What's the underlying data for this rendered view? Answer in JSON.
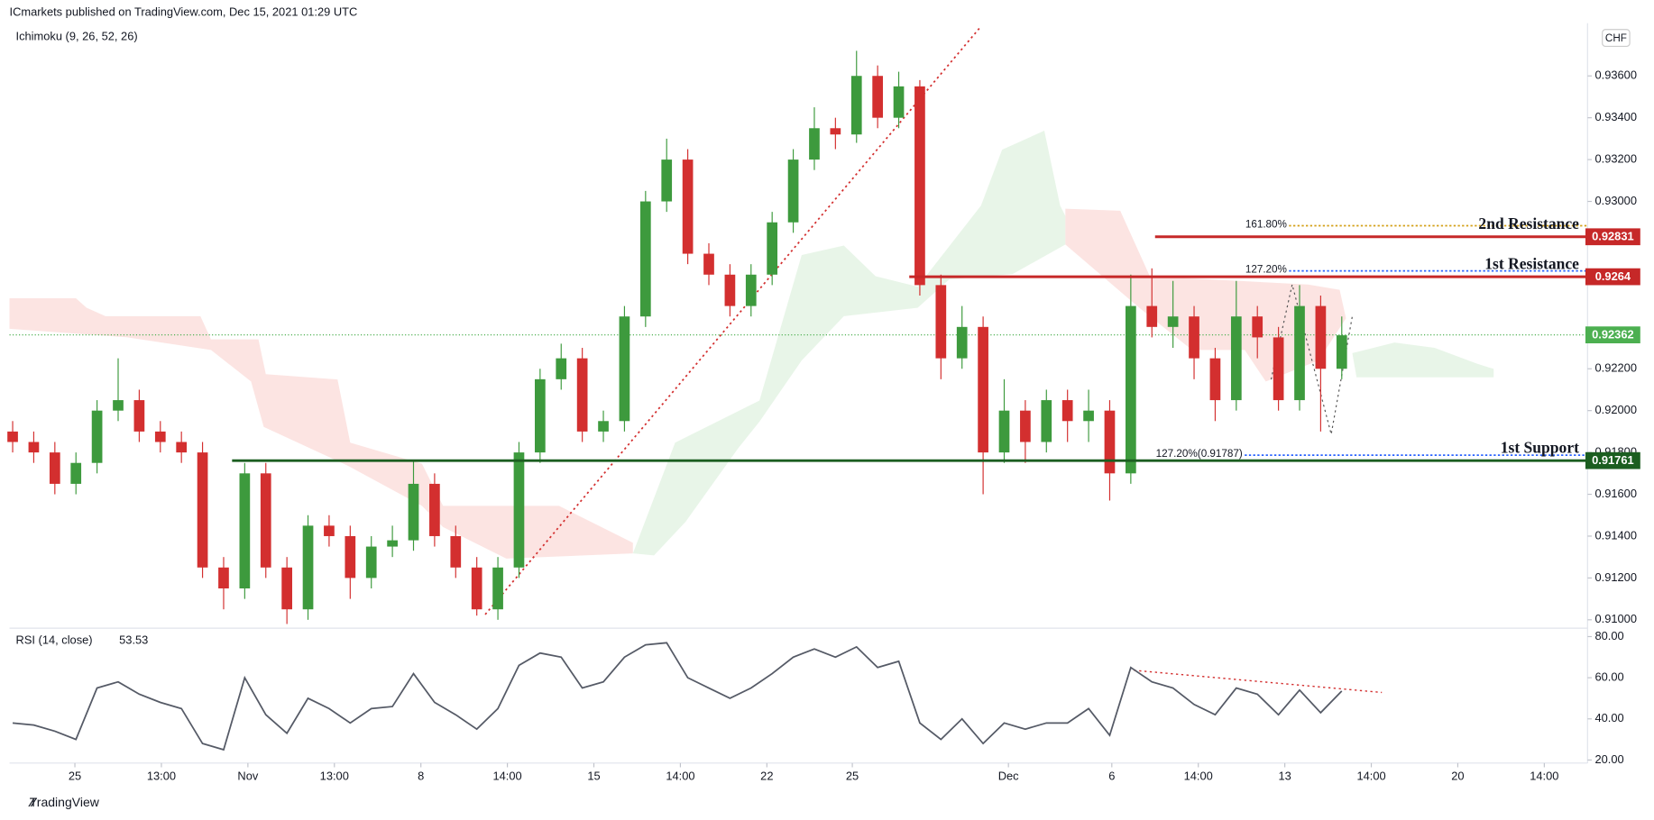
{
  "header": {
    "publisher": "ICmarkets published on TradingView.com, Dec 15, 2021 01:29 UTC",
    "indicator": "Ichimoku (9, 26, 52, 26)",
    "currency": "CHF"
  },
  "footer": {
    "brand": "TradingView"
  },
  "chart_data": [
    {
      "type": "candlestick",
      "up_color": "#3d9a3d",
      "down_color": "#d32f2f",
      "open": [
        0.919,
        0.9185,
        0.918,
        0.9165,
        0.9175,
        0.92,
        0.9205,
        0.919,
        0.9185,
        0.918,
        0.9125,
        0.9115,
        0.917,
        0.9125,
        0.9105,
        0.9145,
        0.914,
        0.912,
        0.9135,
        0.9138,
        0.9165,
        0.914,
        0.9125,
        0.9105,
        0.9125,
        0.918,
        0.9215,
        0.9225,
        0.919,
        0.9195,
        0.9245,
        0.93,
        0.932,
        0.9275,
        0.9265,
        0.925,
        0.9265,
        0.929,
        0.932,
        0.9335,
        0.9332,
        0.936,
        0.934,
        0.9355,
        0.926,
        0.9225,
        0.924,
        0.918,
        0.92,
        0.9185,
        0.9205,
        0.9195,
        0.92,
        0.917,
        0.925,
        0.924,
        0.9245,
        0.9225,
        0.9205,
        0.9245,
        0.9235,
        0.9205,
        0.925,
        0.922
      ],
      "high": [
        0.9195,
        0.919,
        0.9185,
        0.918,
        0.9205,
        0.9225,
        0.921,
        0.9195,
        0.919,
        0.9185,
        0.913,
        0.9175,
        0.9175,
        0.913,
        0.915,
        0.915,
        0.9145,
        0.914,
        0.9145,
        0.9176,
        0.917,
        0.9145,
        0.913,
        0.913,
        0.9185,
        0.922,
        0.9232,
        0.923,
        0.92,
        0.925,
        0.9305,
        0.933,
        0.9325,
        0.928,
        0.927,
        0.927,
        0.9295,
        0.9325,
        0.9345,
        0.934,
        0.9372,
        0.9365,
        0.9362,
        0.9358,
        0.9265,
        0.925,
        0.9245,
        0.9215,
        0.9205,
        0.921,
        0.921,
        0.921,
        0.9205,
        0.9265,
        0.9268,
        0.9262,
        0.925,
        0.923,
        0.9262,
        0.925,
        0.924,
        0.926,
        0.9255,
        0.9245
      ],
      "low": [
        0.918,
        0.9175,
        0.916,
        0.916,
        0.917,
        0.9195,
        0.9185,
        0.918,
        0.9175,
        0.912,
        0.9105,
        0.911,
        0.912,
        0.9098,
        0.91,
        0.9135,
        0.911,
        0.9115,
        0.913,
        0.9133,
        0.9135,
        0.912,
        0.9102,
        0.91,
        0.912,
        0.9175,
        0.921,
        0.9185,
        0.9185,
        0.919,
        0.924,
        0.9295,
        0.927,
        0.926,
        0.9245,
        0.9245,
        0.926,
        0.9285,
        0.9315,
        0.9325,
        0.9328,
        0.9335,
        0.9335,
        0.9255,
        0.9215,
        0.922,
        0.916,
        0.9175,
        0.9175,
        0.918,
        0.9185,
        0.9185,
        0.9157,
        0.9165,
        0.9235,
        0.923,
        0.9215,
        0.9195,
        0.92,
        0.9225,
        0.92,
        0.92,
        0.919,
        0.9215
      ],
      "close": [
        0.9185,
        0.918,
        0.9165,
        0.9175,
        0.92,
        0.9205,
        0.919,
        0.9185,
        0.918,
        0.9125,
        0.9115,
        0.917,
        0.9125,
        0.9105,
        0.9145,
        0.914,
        0.912,
        0.9135,
        0.9138,
        0.9165,
        0.914,
        0.9125,
        0.9105,
        0.9125,
        0.918,
        0.9215,
        0.9225,
        0.919,
        0.9195,
        0.9245,
        0.93,
        0.932,
        0.9275,
        0.9265,
        0.925,
        0.9265,
        0.929,
        0.932,
        0.9335,
        0.9332,
        0.936,
        0.934,
        0.9355,
        0.926,
        0.9225,
        0.924,
        0.918,
        0.92,
        0.9185,
        0.9205,
        0.9195,
        0.92,
        0.917,
        0.925,
        0.924,
        0.9245,
        0.9225,
        0.9205,
        0.9245,
        0.9235,
        0.9205,
        0.925,
        0.922,
        0.9236
      ],
      "xlim": [
        -0.15,
        74.65
      ],
      "xticks": [
        {
          "value": 2.95,
          "label": "25"
        },
        {
          "value": 7.05,
          "label": "13:00"
        },
        {
          "value": 11.15,
          "label": "Nov"
        },
        {
          "value": 15.25,
          "label": "13:00"
        },
        {
          "value": 19.35,
          "label": "8"
        },
        {
          "value": 23.45,
          "label": "14:00"
        },
        {
          "value": 27.55,
          "label": "15"
        },
        {
          "value": 31.65,
          "label": "14:00"
        },
        {
          "value": 35.75,
          "label": "22"
        },
        {
          "value": 39.8,
          "label": "25"
        },
        {
          "value": 47.2,
          "label": "Dec"
        },
        {
          "value": 52.1,
          "label": "6"
        },
        {
          "value": 56.2,
          "label": "14:00"
        },
        {
          "value": 60.3,
          "label": "13"
        },
        {
          "value": 64.4,
          "label": "14:00"
        },
        {
          "value": 68.5,
          "label": "20"
        },
        {
          "value": 72.6,
          "label": "14:00"
        }
      ],
      "ylim": [
        0.90965,
        0.93852
      ],
      "yticks": [
        {
          "value": 0.936,
          "label": "0.93600"
        },
        {
          "value": 0.934,
          "label": "0.93400"
        },
        {
          "value": 0.932,
          "label": "0.93200"
        },
        {
          "value": 0.93,
          "label": "0.93000"
        },
        {
          "value": 0.922,
          "label": "0.92200"
        },
        {
          "value": 0.92,
          "label": "0.92000"
        },
        {
          "value": 0.918,
          "label": "0.91800"
        },
        {
          "value": 0.916,
          "label": "0.91600"
        },
        {
          "value": 0.914,
          "label": "0.91400"
        },
        {
          "value": 0.912,
          "label": "0.91200"
        },
        {
          "value": 0.91,
          "label": "0.91000"
        }
      ],
      "levels": [
        {
          "name": "2nd Resistance",
          "value": 0.92831,
          "color": "#c62828",
          "start": 54.15
        },
        {
          "name": "1st Resistance",
          "value": 0.9264,
          "color": "#c62828",
          "start": 42.5
        },
        {
          "name": "1st Support",
          "value": 0.91761,
          "color": "#1b5e20",
          "start": 10.4
        }
      ],
      "last_price": {
        "value": 0.92362,
        "color": "#4caf50"
      },
      "fib": [
        {
          "label": "161.80%",
          "value": 0.92884,
          "color": "#d4a017",
          "start": 60.5
        },
        {
          "label": "127.20%",
          "value": 0.92668,
          "color": "#2962ff",
          "start": 60.5
        },
        {
          "label": "127.20%(0.91787)",
          "value": 0.91787,
          "color": "#2962ff",
          "start": 58.4
        }
      ]
    },
    {
      "type": "line",
      "title": "RSI (14, close)",
      "color": "#555a66",
      "values": [
        38,
        37,
        34,
        30,
        55,
        58,
        52,
        48,
        45,
        28,
        25,
        60,
        42,
        33,
        50,
        45,
        38,
        45,
        46,
        62,
        48,
        42,
        35,
        45,
        66,
        72,
        70,
        55,
        58,
        70,
        76,
        77,
        60,
        55,
        50,
        55,
        62,
        70,
        74,
        70,
        75,
        65,
        68,
        38,
        30,
        40,
        28,
        38,
        35,
        38,
        38,
        45,
        32,
        65,
        58,
        55,
        47,
        42,
        55,
        52,
        42,
        54,
        43,
        53.53
      ],
      "ylim": [
        18.5,
        84.1
      ],
      "yticks": [
        {
          "value": 20,
          "label": "20.00"
        },
        {
          "value": 40,
          "label": "40.00"
        },
        {
          "value": 60,
          "label": "60.00"
        },
        {
          "value": 80,
          "label": "80.00"
        }
      ]
    }
  ]
}
